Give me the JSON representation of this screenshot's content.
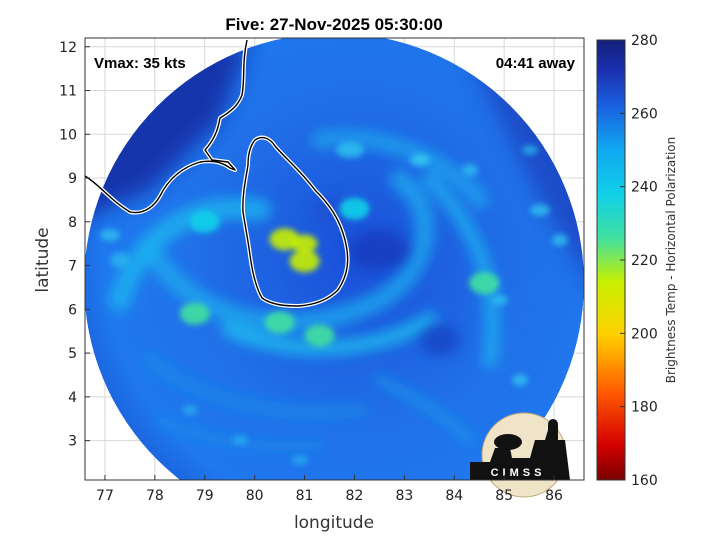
{
  "chart_data": {
    "type": "heatmap",
    "title": "Five: 27-Nov-2025 05:30:00",
    "annotations": {
      "left": "Vmax: 35 kts",
      "right": "04:41 away"
    },
    "xlabel": "longitude",
    "ylabel": "latitude",
    "xlim": [
      76.6,
      86.6
    ],
    "ylim": [
      2.1,
      12.2
    ],
    "xticks": [
      77,
      78,
      79,
      80,
      81,
      82,
      83,
      84,
      85,
      86
    ],
    "yticks": [
      3,
      4,
      5,
      6,
      7,
      8,
      9,
      10,
      11,
      12
    ],
    "grid": true,
    "colorbar": {
      "label": "Brightness Temp - Horizontal Polarization",
      "range": [
        160,
        280
      ],
      "ticks": [
        160,
        180,
        200,
        220,
        240,
        260,
        280
      ]
    },
    "swath": {
      "center": [
        81.6,
        6.9
      ],
      "radius_deg": 5.0
    },
    "features": [
      {
        "lon": 81.0,
        "lat": 7.5,
        "value": 212
      },
      {
        "lon": 80.6,
        "lat": 7.6,
        "value": 220
      },
      {
        "lon": 81.0,
        "lat": 7.1,
        "value": 218
      },
      {
        "lon": 80.5,
        "lat": 5.7,
        "value": 222
      },
      {
        "lon": 81.3,
        "lat": 5.4,
        "value": 226
      },
      {
        "lon": 78.8,
        "lat": 5.9,
        "value": 232
      },
      {
        "lon": 84.6,
        "lat": 6.6,
        "value": 228
      },
      {
        "lon": 79.0,
        "lat": 8.0,
        "value": 236
      },
      {
        "lon": 82.0,
        "lat": 8.3,
        "value": 240
      }
    ],
    "logo": "CIMSS"
  },
  "colors": {
    "cold_sector": "#1232a8",
    "swath_base": "#1e6ae6",
    "coastline": "#ffffff"
  }
}
